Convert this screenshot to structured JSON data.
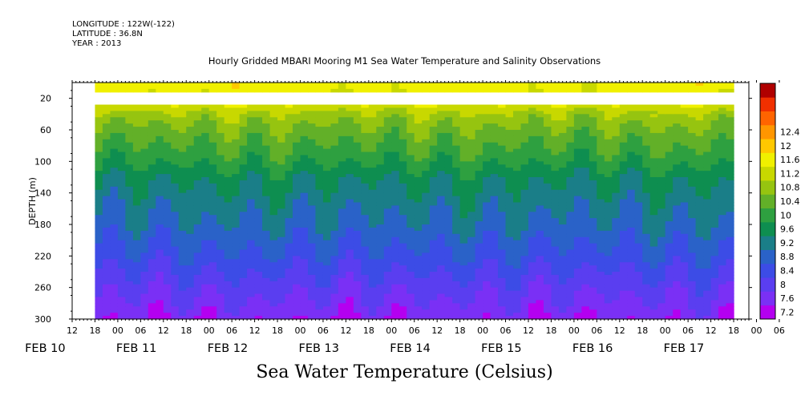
{
  "header": {
    "longitude": "LONGITUDE : 122W(-122)",
    "latitude": "LATITUDE : 36.8N",
    "year": "YEAR : 2013"
  },
  "chart_data": {
    "type": "heatmap",
    "title": "Hourly Gridded MBARI Mooring M1 Sea Water Temperature and Salinity Observations",
    "xlabel": "",
    "ylabel": "DEPTH (m)",
    "caption": "Sea Water Temperature (Celsius)",
    "time_start_hour": 12,
    "data_start_hour": 18,
    "data_end_hour": 186,
    "x_range_hours": [
      12,
      190
    ],
    "x_tick_labels": [
      "12",
      "18",
      "00",
      "06",
      "12",
      "18",
      "00",
      "06",
      "12",
      "18",
      "00",
      "06",
      "12",
      "18",
      "00",
      "06",
      "12",
      "18",
      "00",
      "06",
      "12",
      "18",
      "00",
      "06",
      "12",
      "18",
      "00",
      "06",
      "12",
      "18",
      "00",
      "06"
    ],
    "date_labels": [
      {
        "label": "FEB 10",
        "hour": 0
      },
      {
        "label": "FEB 11",
        "hour": 24
      },
      {
        "label": "FEB 12",
        "hour": 48
      },
      {
        "label": "FEB 13",
        "hour": 72
      },
      {
        "label": "FEB 14",
        "hour": 96
      },
      {
        "label": "FEB 15",
        "hour": 120
      },
      {
        "label": "FEB 16",
        "hour": 144
      },
      {
        "label": "FEB 17",
        "hour": 168
      }
    ],
    "y_range": [
      0,
      300
    ],
    "y_ticks": [
      20,
      60,
      100,
      140,
      180,
      220,
      260,
      300
    ],
    "missing_depth_range": [
      10,
      30
    ],
    "colorbar": {
      "levels": [
        7.2,
        7.6,
        8,
        8.4,
        8.8,
        9.2,
        9.6,
        10,
        10.4,
        10.8,
        11.2,
        11.6,
        12,
        12.4
      ],
      "labels": [
        "7.2",
        "7.6",
        "8",
        "8.4",
        "8.8",
        "9.2",
        "9.6",
        "10",
        "10.4",
        "10.8",
        "11.2",
        "11.6",
        "12",
        "12.4"
      ],
      "colors": [
        "#b400f0",
        "#7a30f5",
        "#5a3ef0",
        "#3c4ce6",
        "#2a62c8",
        "#1a7e88",
        "#0e8e50",
        "#2ea040",
        "#62b028",
        "#96c410",
        "#c8d800",
        "#f0f000",
        "#ffc800",
        "#ff9600",
        "#ff6400",
        "#f03000",
        "#b00000"
      ]
    },
    "depth_profile": [
      {
        "depth": 5,
        "temp": 11.4
      },
      {
        "depth": 30,
        "temp": 11.1
      },
      {
        "depth": 40,
        "temp": 10.7
      },
      {
        "depth": 60,
        "temp": 10.3
      },
      {
        "depth": 80,
        "temp": 10.0
      },
      {
        "depth": 100,
        "temp": 9.7
      },
      {
        "depth": 120,
        "temp": 9.3
      },
      {
        "depth": 140,
        "temp": 9.1
      },
      {
        "depth": 160,
        "temp": 8.9
      },
      {
        "depth": 180,
        "temp": 8.75
      },
      {
        "depth": 200,
        "temp": 8.5
      },
      {
        "depth": 220,
        "temp": 8.3
      },
      {
        "depth": 240,
        "temp": 8.0
      },
      {
        "depth": 260,
        "temp": 7.75
      },
      {
        "depth": 280,
        "temp": 7.5
      },
      {
        "depth": 300,
        "temp": 7.25
      }
    ]
  }
}
